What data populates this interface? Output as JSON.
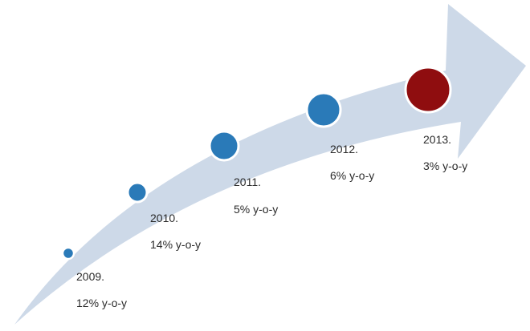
{
  "colors": {
    "arrow": "#cdd9e8",
    "dot": "#2a7ab8",
    "dot_highlight": "#8f0d0f",
    "dot_ring": "#ffffff"
  },
  "milestones": [
    {
      "year": "2009.",
      "growth": "12% y-o-y",
      "highlight": false
    },
    {
      "year": "2010.",
      "growth": "14% y-o-y",
      "highlight": false
    },
    {
      "year": "2011.",
      "growth": "5% y-o-y",
      "highlight": false
    },
    {
      "year": "2012.",
      "growth": "6% y-o-y",
      "highlight": false
    },
    {
      "year": "2013.",
      "growth": "3% y-o-y",
      "highlight": true
    }
  ]
}
